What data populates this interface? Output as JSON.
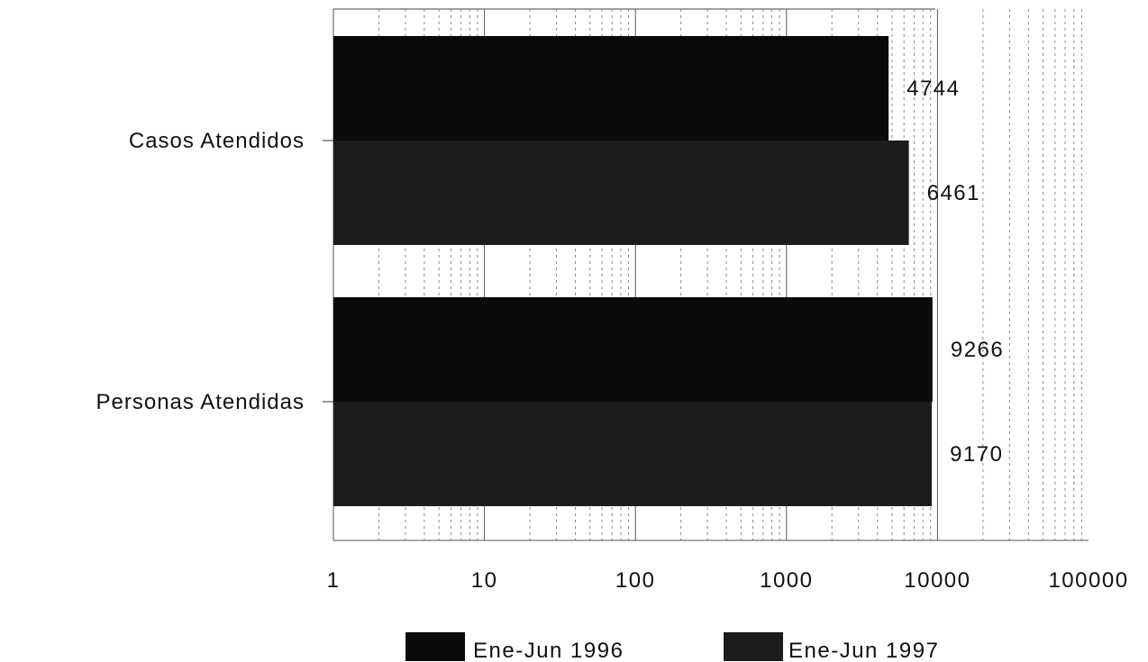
{
  "chart_data": {
    "type": "bar",
    "orientation": "horizontal",
    "x_scale": "log",
    "xlim": [
      1,
      100000
    ],
    "x_ticks": [
      1,
      10,
      100,
      1000,
      10000,
      100000
    ],
    "x_tick_labels": [
      "1",
      "10",
      "100",
      "1000",
      "10000",
      "100000"
    ],
    "grid": "vertical, dotted minor and major lines",
    "categories": [
      "Casos Atendidos",
      "Personas Atendidas"
    ],
    "series": [
      {
        "name": "Ene-Jun 1996",
        "values": [
          4744,
          9266
        ],
        "color": "#0a0a0a"
      },
      {
        "name": "Ene-Jun 1997",
        "values": [
          6461,
          9170
        ],
        "color": "#1c1c1c"
      }
    ],
    "legend_position": "bottom"
  }
}
